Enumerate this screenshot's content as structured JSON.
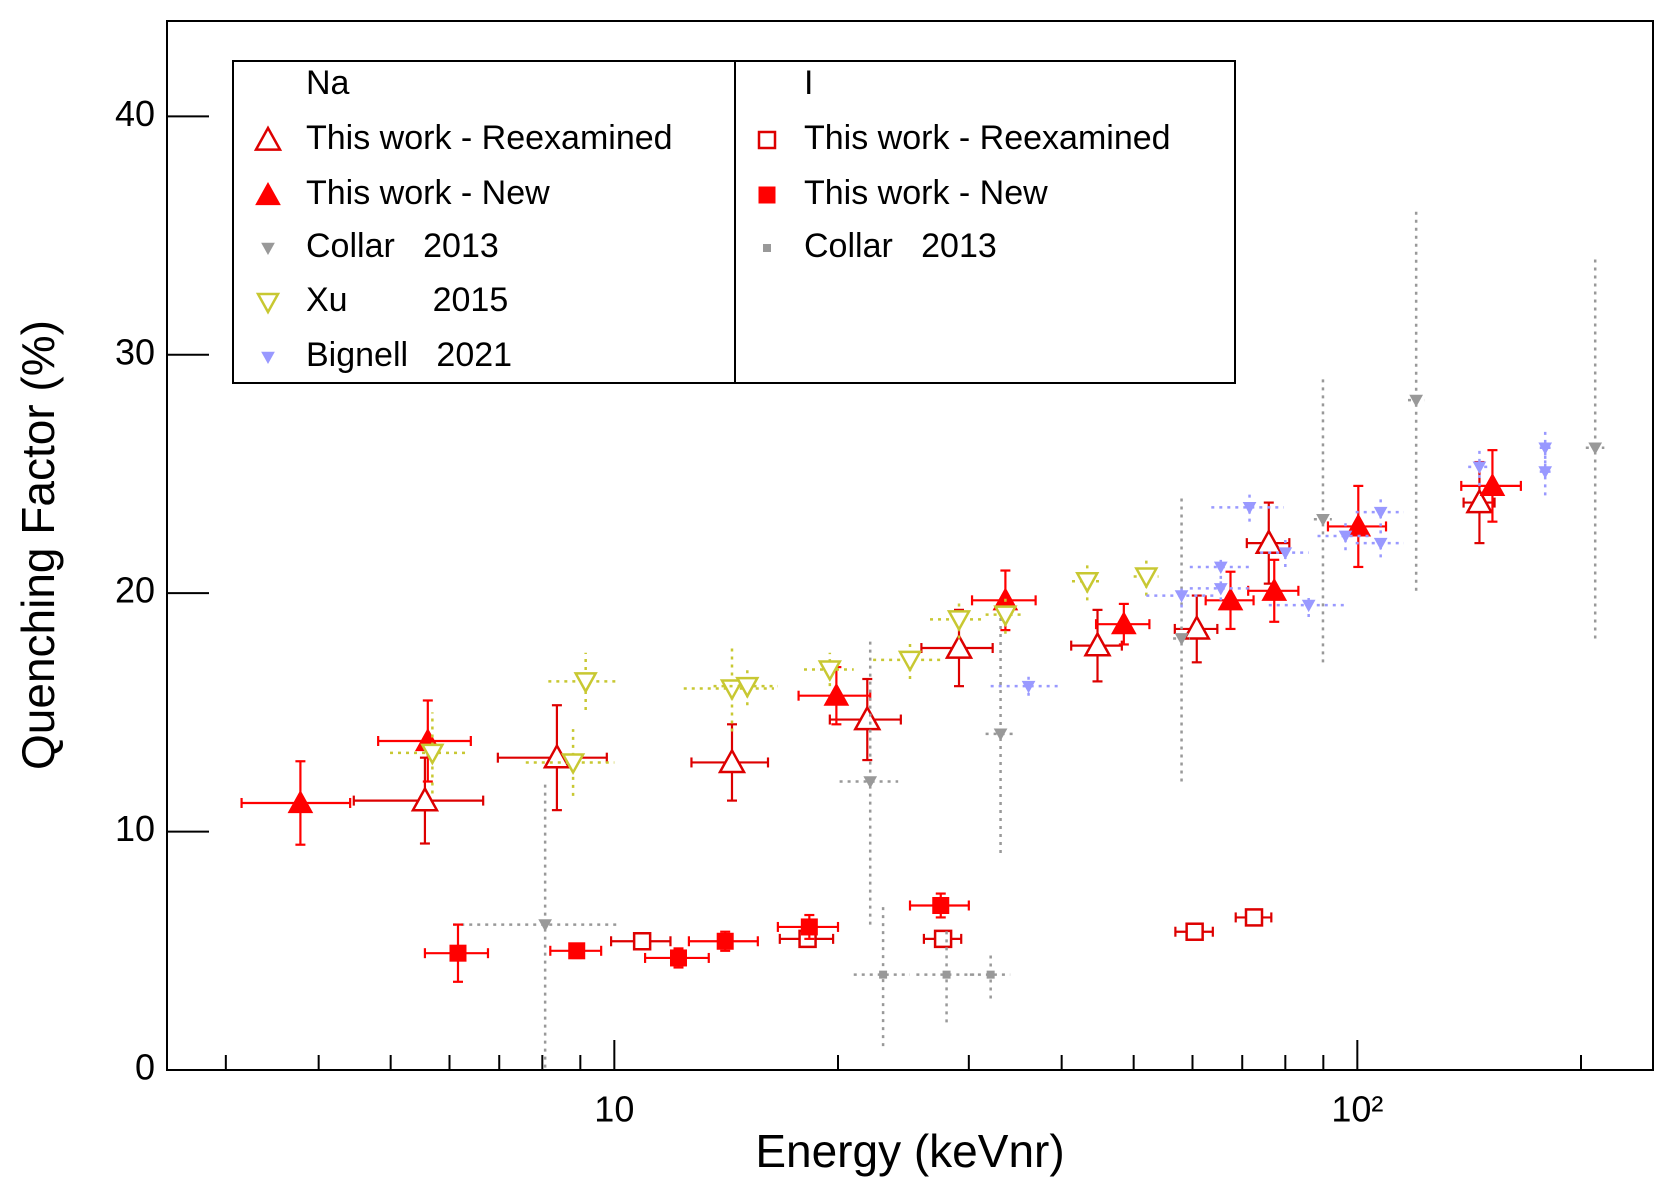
{
  "chart_data": {
    "type": "scatter",
    "xlabel": "Energy (keVnr)",
    "ylabel": "Quenching Factor (%)",
    "xscale": "log",
    "xlim": [
      2.5,
      250
    ],
    "ylim": [
      0,
      44
    ],
    "xticks": [
      10,
      {
        "value": 100,
        "label": "10²"
      }
    ],
    "xminor_ticks": [
      3,
      4,
      5,
      6,
      7,
      8,
      9,
      20,
      30,
      40,
      50,
      60,
      70,
      80,
      90,
      200
    ],
    "yticks": [
      0,
      10,
      20,
      30,
      40
    ],
    "groups": [
      {
        "title": "Na",
        "series": [
          {
            "name": "This work - Reexamined",
            "color": "#dd0000",
            "marker": "triangle-up-open",
            "error_style": "solid",
            "x": [
              5.56,
              8.37,
              14.4,
              21.9,
              29.1,
              44.7,
              60.8,
              76.0,
              146
            ],
            "xerr": [
              1.1,
              1.4,
              1.7,
              2.4,
              3.2,
              3.5,
              4,
              5,
              7
            ],
            "values": [
              11.3,
              13.1,
              12.9,
              14.7,
              17.7,
              17.8,
              18.5,
              22.1,
              23.8
            ],
            "yerr": [
              1.8,
              2.2,
              1.6,
              1.7,
              1.6,
              1.5,
              1.4,
              1.7,
              1.7
            ]
          },
          {
            "name": "This work - New",
            "color": "#ff0000",
            "marker": "triangle-up-filled",
            "error_style": "solid",
            "x": [
              3.78,
              5.61,
              19.9,
              33.6,
              48.5,
              67.5,
              77.3,
              100.3,
              152
            ],
            "xerr": [
              0.63,
              0.8,
              2.2,
              3.3,
              4,
              5,
              6,
              9,
              14
            ],
            "values": [
              11.2,
              13.8,
              15.7,
              19.7,
              18.7,
              19.7,
              20.1,
              22.8,
              24.5
            ],
            "yerr": [
              1.75,
              1.7,
              1.2,
              1.25,
              0.85,
              1.2,
              1.3,
              1.7,
              1.5
            ]
          },
          {
            "name": "Collar   2013",
            "color": "#999999",
            "marker": "triangle-down-small",
            "error_style": "dotted",
            "x": [
              8.07,
              22.1,
              33.1,
              58,
              89.9,
              120,
              209
            ],
            "xerr": [
              2,
              2,
              1.5,
              1.5,
              2.5,
              3,
              6
            ],
            "values": [
              6.1,
              12.1,
              14.1,
              18.1,
              23.1,
              28.1,
              26.1
            ],
            "yerr": [
              6,
              6,
              5,
              6,
              6,
              8,
              8
            ]
          },
          {
            "name": "Xu         2015",
            "color": "#c8c832",
            "marker": "triangle-down-open",
            "error_style": "dotted",
            "x": [
              5.69,
              9.15,
              8.8,
              14.4,
              15.1,
              19.5,
              25.0,
              29.1,
              33.6,
              43.3,
              52
            ],
            "xerr": [
              0.7,
              1,
              1.2,
              2,
              1.5,
              1.5,
              2.7,
              2.5,
              2,
              2,
              2
            ],
            "values": [
              13.3,
              16.3,
              12.9,
              16.0,
              16.1,
              16.8,
              17.2,
              18.9,
              19.1,
              20.5,
              20.7
            ],
            "yerr": [
              1.7,
              1.2,
              1.4,
              1.8,
              0.8,
              0.7,
              0.8,
              0.8,
              0.8,
              0.8,
              0.8
            ]
          },
          {
            "name": "Bignell   2021",
            "color": "#9999ff",
            "marker": "triangle-down-small",
            "error_style": "dotted",
            "x": [
              36.1,
              58,
              65.5,
              65.5,
              71.6,
              80,
              86,
              96.4,
              107.5,
              107.5,
              146,
              179,
              179
            ],
            "xerr": [
              4,
              6,
              6,
              6,
              8,
              6,
              10,
              8,
              8,
              8,
              5,
              3,
              3
            ],
            "values": [
              16.1,
              19.9,
              21.1,
              20.2,
              23.6,
              21.7,
              19.5,
              22.4,
              23.4,
              22.1,
              25.3,
              26.1,
              25.1
            ],
            "yerr": [
              0.4,
              0.5,
              0.5,
              0.5,
              0.6,
              0.6,
              0.5,
              0.6,
              0.6,
              0.6,
              0.8,
              0.8,
              1.0
            ]
          }
        ]
      },
      {
        "title": "I",
        "series": [
          {
            "name": "This work - Reexamined",
            "color": "#dd0000",
            "marker": "square-open",
            "error_style": "solid",
            "x": [
              10.9,
              18.2,
              27.7,
              60.4,
              72.6
            ],
            "xerr": [
              1,
              1.5,
              1.6,
              3.5,
              4
            ],
            "values": [
              5.4,
              5.5,
              5.5,
              5.8,
              6.4
            ],
            "yerr": [
              0.3,
              0.3,
              0.3,
              0.2,
              0.3
            ]
          },
          {
            "name": "This work - New",
            "color": "#ff0000",
            "marker": "square-filled",
            "error_style": "solid",
            "x": [
              6.16,
              8.9,
              12.2,
              14.1,
              18.3,
              27.5
            ],
            "xerr": [
              0.6,
              0.7,
              1.2,
              1.5,
              1.7,
              2.5
            ],
            "values": [
              4.9,
              5.0,
              4.7,
              5.4,
              6.0,
              6.9
            ],
            "yerr": [
              1.2,
              0.3,
              0.4,
              0.4,
              0.5,
              0.5
            ]
          },
          {
            "name": "Collar   2013",
            "color": "#999999",
            "marker": "square-small",
            "error_style": "dotted",
            "x": [
              23.0,
              28.0,
              32.1
            ],
            "xerr": [
              2,
              2.5,
              2
            ],
            "values": [
              4.0,
              4.0,
              4.0
            ],
            "yerr": [
              3,
              2,
              1
            ]
          }
        ]
      }
    ]
  }
}
